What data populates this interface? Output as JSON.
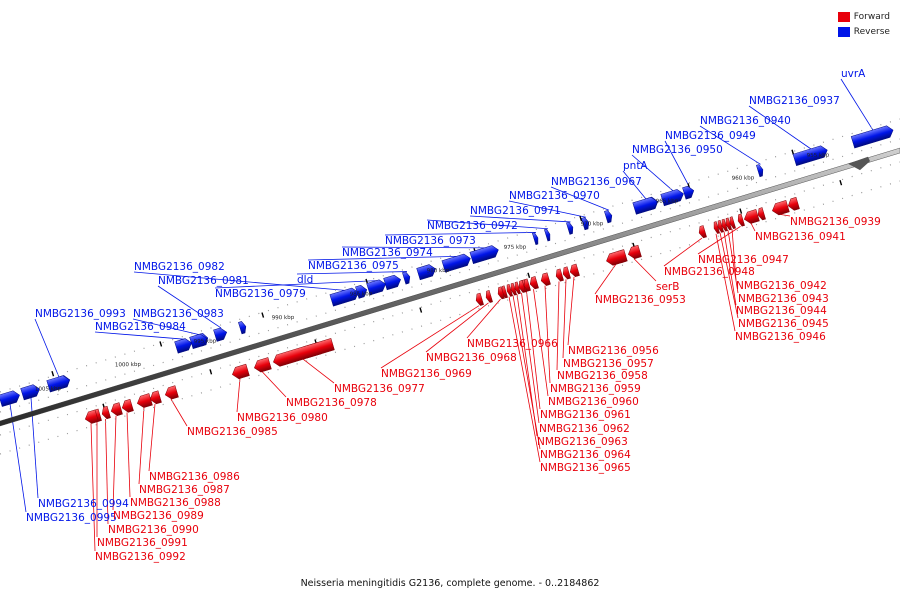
{
  "legend": {
    "forward_label": "Forward",
    "reverse_label": "Reverse",
    "forward_color": "#e8000b",
    "reverse_color": "#0015e8"
  },
  "caption": "Neisseria meningitidis G2136, complete genome. - 0..2184862",
  "ticks": [
    "1005 kbp",
    "1000 kbp",
    "995 kbp",
    "990 kbp",
    "985 kbp",
    "980 kbp",
    "975 kbp",
    "970 kbp",
    "965 kbp",
    "960 kbp",
    "955 kbp"
  ],
  "reverse_genes": [
    "uvrA",
    "NMBG2136_0937",
    "NMBG2136_0940",
    "NMBG2136_0949",
    "NMBG2136_0950",
    "pntA",
    "NMBG2136_0967",
    "NMBG2136_0970",
    "NMBG2136_0971",
    "NMBG2136_0972",
    "NMBG2136_0973",
    "NMBG2136_0974",
    "NMBG2136_0975",
    "dld",
    "NMBG2136_0979",
    "NMBG2136_0982",
    "NMBG2136_0981",
    "NMBG2136_0983",
    "NMBG2136_0984",
    "NMBG2136_0993",
    "NMBG2136_0994",
    "NMBG2136_0995"
  ],
  "forward_genes": [
    "NMBG2136_0939",
    "NMBG2136_0941",
    "NMBG2136_0947",
    "NMBG2136_0948",
    "NMBG2136_0942",
    "NMBG2136_0943",
    "NMBG2136_0944",
    "NMBG2136_0945",
    "NMBG2136_0946",
    "serB",
    "NMBG2136_0953",
    "NMBG2136_0956",
    "NMBG2136_0957",
    "NMBG2136_0958",
    "NMBG2136_0959",
    "NMBG2136_0960",
    "NMBG2136_0961",
    "NMBG2136_0962",
    "NMBG2136_0963",
    "NMBG2136_0964",
    "NMBG2136_0965",
    "NMBG2136_0966",
    "NMBG2136_0968",
    "NMBG2136_0969",
    "NMBG2136_0977",
    "NMBG2136_0978",
    "NMBG2136_0980",
    "NMBG2136_0985",
    "NMBG2136_0986",
    "NMBG2136_0987",
    "NMBG2136_0988",
    "NMBG2136_0989",
    "NMBG2136_0990",
    "NMBG2136_0991",
    "NMBG2136_0992"
  ]
}
